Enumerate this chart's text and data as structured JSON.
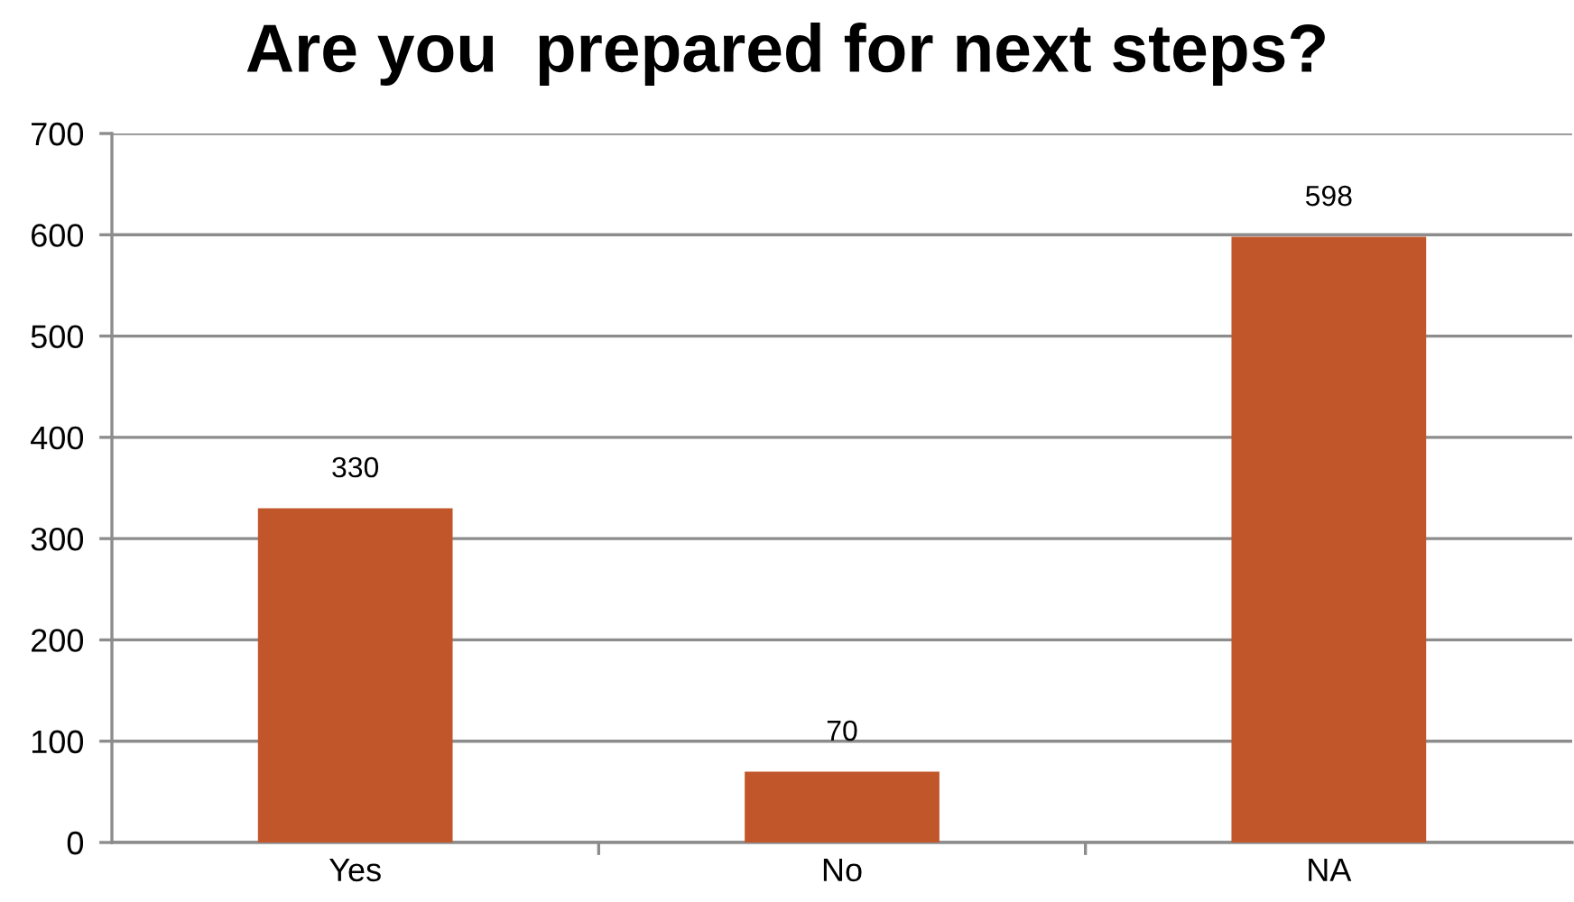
{
  "chart_data": {
    "type": "bar",
    "title": "Are you  prepared for next steps?",
    "categories": [
      "Yes",
      "No",
      "NA"
    ],
    "values": [
      330,
      70,
      598
    ],
    "color": "#c2562b",
    "ylim": [
      0,
      700
    ],
    "yticks": [
      0,
      100,
      200,
      300,
      400,
      500,
      600,
      700
    ],
    "grid": "y",
    "data_labels": true
  }
}
